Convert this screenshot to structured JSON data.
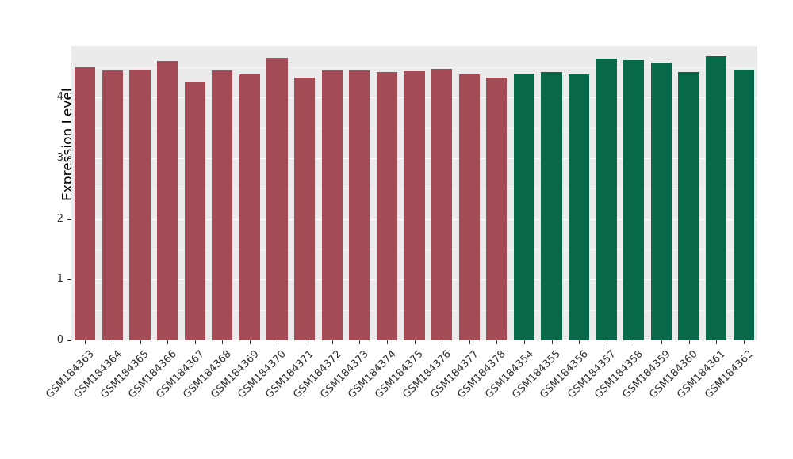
{
  "chart_data": {
    "type": "bar",
    "title": "",
    "xlabel": "",
    "ylabel": "Expression Level",
    "ylim": [
      0,
      4.85
    ],
    "yticks": [
      0,
      1,
      2,
      3,
      4
    ],
    "grid": "major-and-minor-white-on-gray",
    "legend_position": "none",
    "panel_background": "#EBEBEB",
    "categories": [
      "GSM184363",
      "GSM184364",
      "GSM184365",
      "GSM184366",
      "GSM184367",
      "GSM184368",
      "GSM184369",
      "GSM184370",
      "GSM184371",
      "GSM184372",
      "GSM184373",
      "GSM184374",
      "GSM184375",
      "GSM184376",
      "GSM184377",
      "GSM184378",
      "GSM184354",
      "GSM184355",
      "GSM184356",
      "GSM184357",
      "GSM184358",
      "GSM184359",
      "GSM184360",
      "GSM184361",
      "GSM184362"
    ],
    "values": [
      4.5,
      4.45,
      4.46,
      4.6,
      4.25,
      4.44,
      4.38,
      4.65,
      4.33,
      4.44,
      4.45,
      4.42,
      4.43,
      4.47,
      4.38,
      4.33,
      4.4,
      4.42,
      4.38,
      4.64,
      4.62,
      4.58,
      4.42,
      4.68,
      4.46
    ],
    "color_groups": [
      {
        "name": "group-red",
        "color": "#A34C55",
        "count": 16
      },
      {
        "name": "group-green",
        "color": "#07694A",
        "count": 9
      }
    ]
  }
}
